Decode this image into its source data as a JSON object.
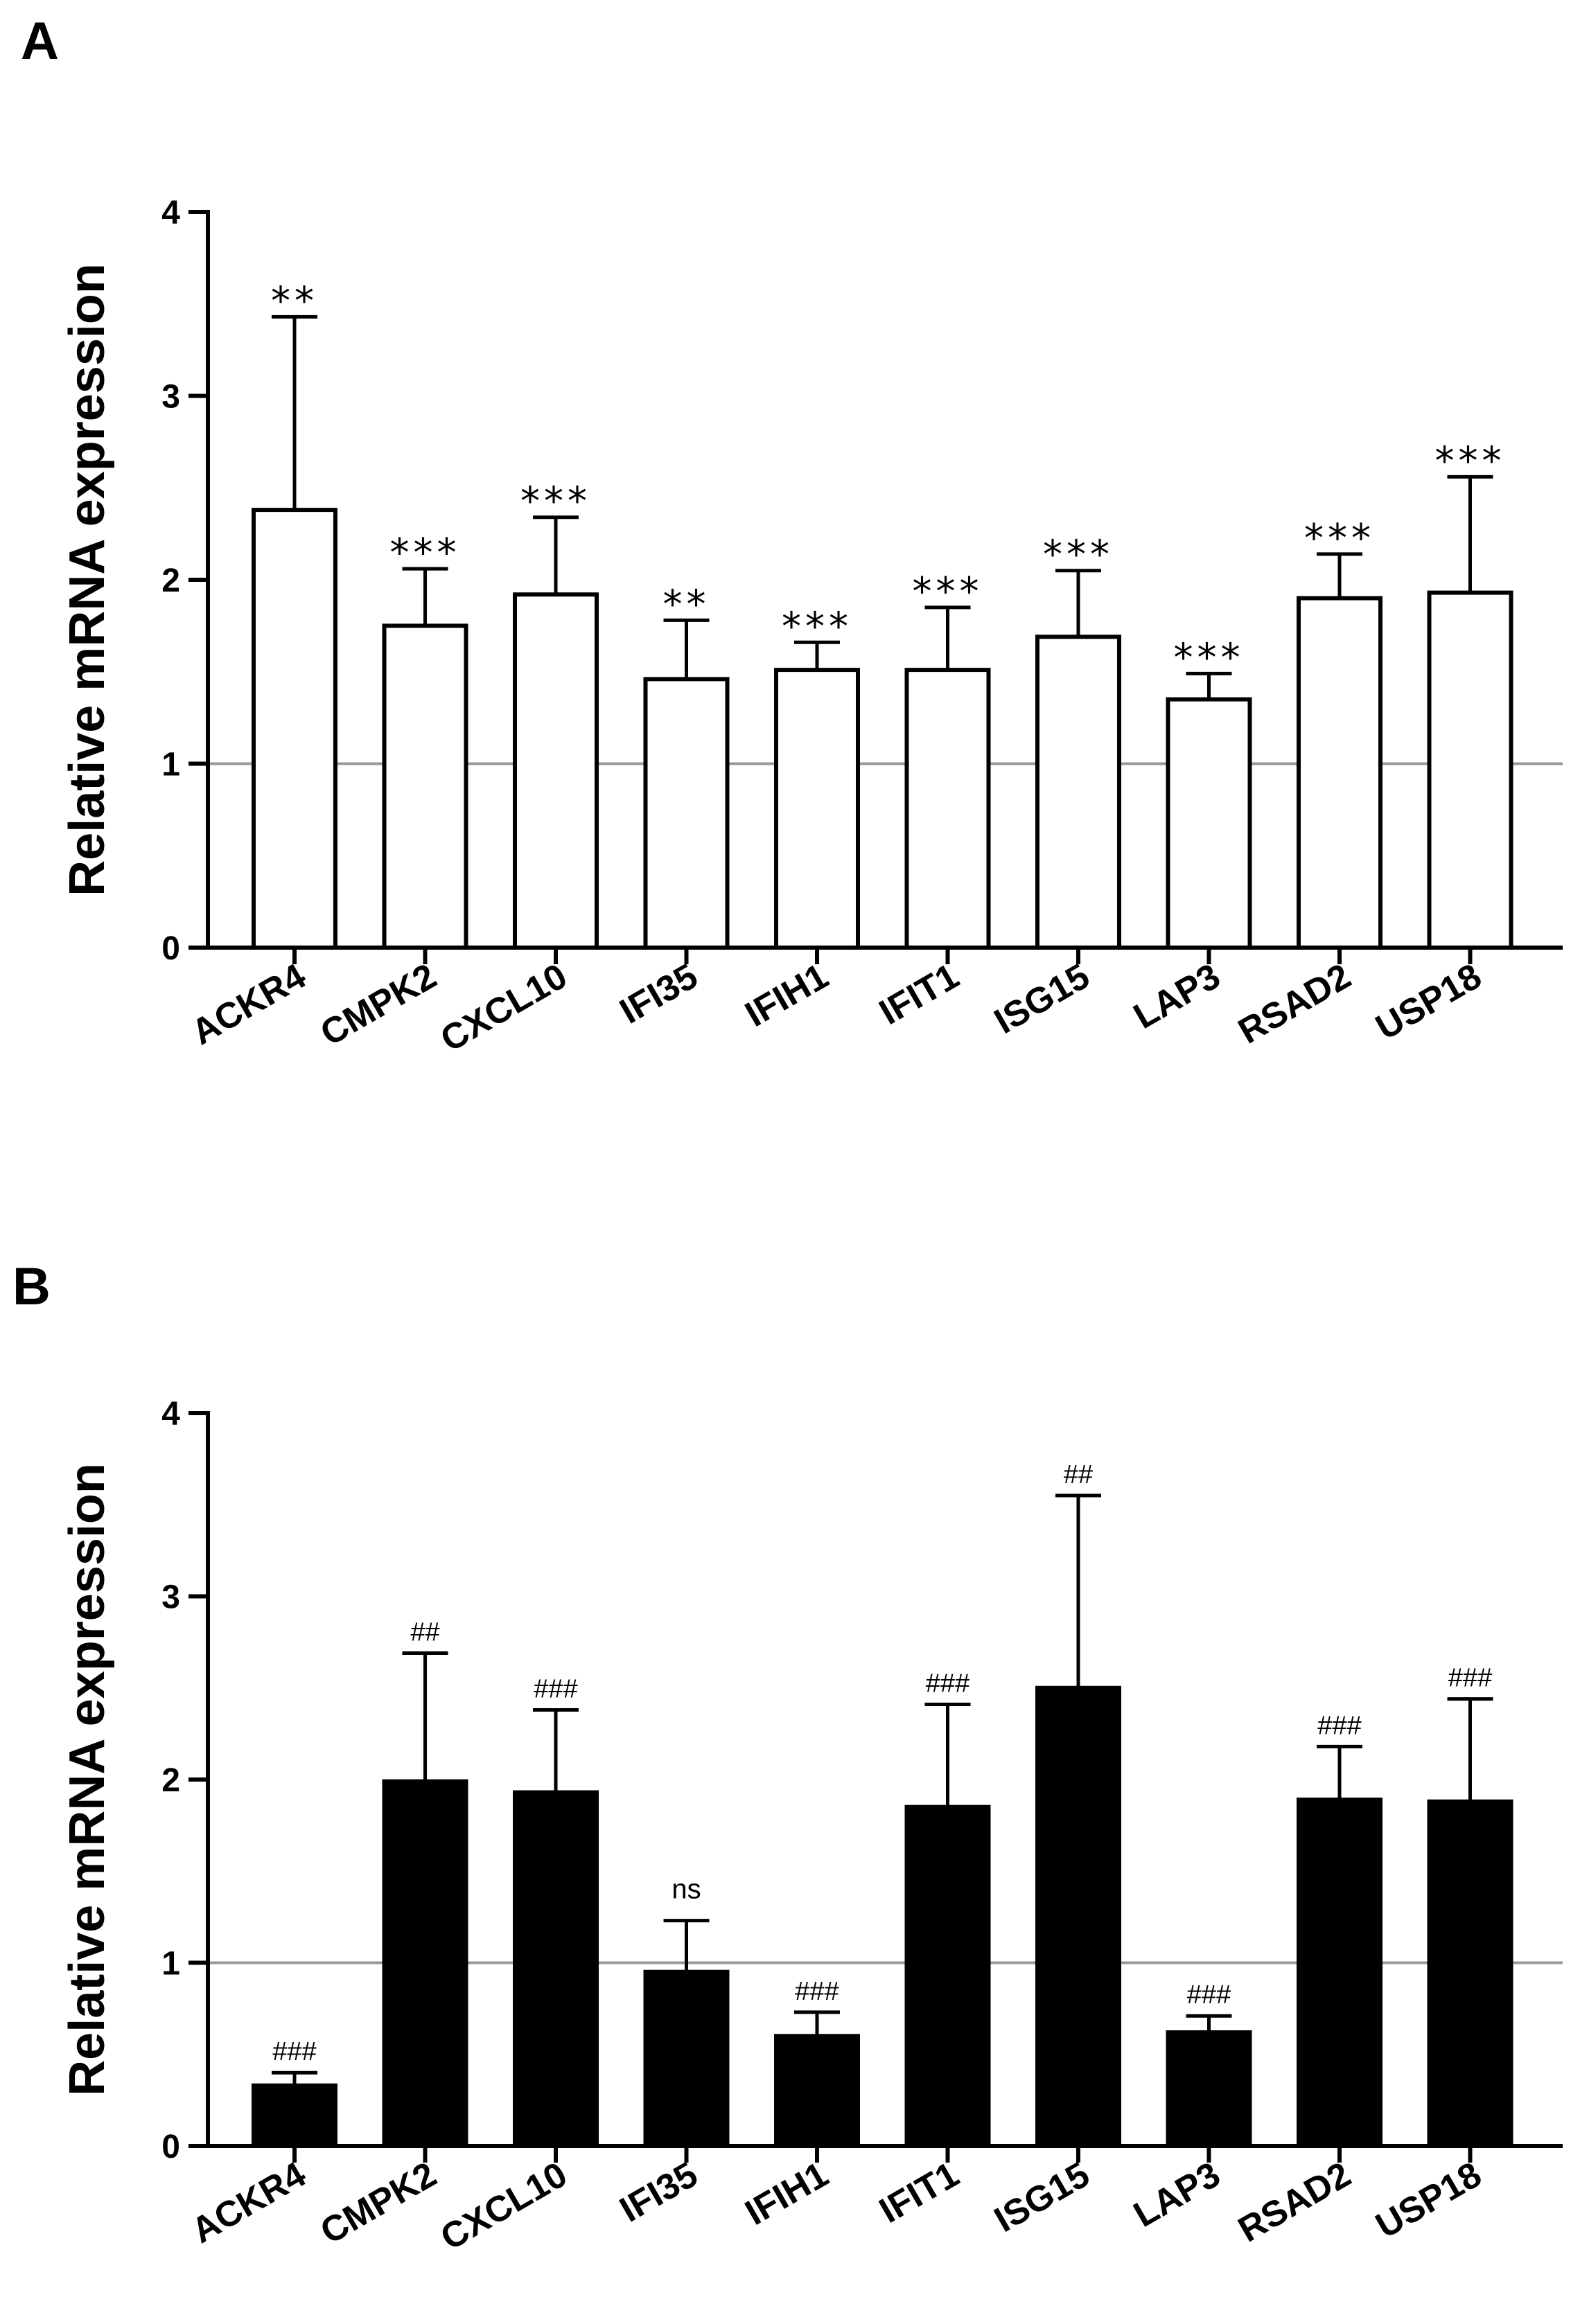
{
  "figure": {
    "panel_a_label": "A",
    "panel_b_label": "B"
  },
  "chart_data": [
    {
      "type": "bar",
      "panel": "A",
      "title": "",
      "ylabel": "Relative mRNA expression",
      "xlabel": "",
      "ylim": [
        0,
        4
      ],
      "yticks": [
        0,
        1,
        2,
        3,
        4
      ],
      "reference_line": 1,
      "bar_fill": "#ffffff",
      "bar_stroke": "#000000",
      "categories": [
        "ACKR4",
        "CMPK2",
        "CXCL10",
        "IFI35",
        "IFIH1",
        "IFIT1",
        "ISG15",
        "LAP3",
        "RSAD2",
        "USP18"
      ],
      "values": [
        2.38,
        1.75,
        1.92,
        1.46,
        1.51,
        1.51,
        1.69,
        1.35,
        1.9,
        1.93
      ],
      "error_upper": [
        3.43,
        2.06,
        2.34,
        1.78,
        1.66,
        1.85,
        2.05,
        1.49,
        2.14,
        2.56
      ],
      "significance": [
        "**",
        "***",
        "***",
        "**",
        "***",
        "***",
        "***",
        "***",
        "***",
        "***"
      ]
    },
    {
      "type": "bar",
      "panel": "B",
      "title": "",
      "ylabel": "Relative mRNA expression",
      "xlabel": "",
      "ylim": [
        0,
        4
      ],
      "yticks": [
        0,
        1,
        2,
        3,
        4
      ],
      "reference_line": 1,
      "bar_fill": "#000000",
      "bar_stroke": "#000000",
      "categories": [
        "ACKR4",
        "CMPK2",
        "CXCL10",
        "IFI35",
        "IFIH1",
        "IFIT1",
        "ISG15",
        "LAP3",
        "RSAD2",
        "USP18"
      ],
      "values": [
        0.33,
        1.99,
        1.93,
        0.95,
        0.6,
        1.85,
        2.5,
        0.62,
        1.89,
        1.88
      ],
      "error_upper": [
        0.4,
        2.69,
        2.38,
        1.23,
        0.73,
        2.41,
        3.55,
        0.71,
        2.18,
        2.44
      ],
      "significance": [
        "###",
        "##",
        "###",
        "ns",
        "###",
        "###",
        "##",
        "###",
        "###",
        "###"
      ]
    }
  ]
}
